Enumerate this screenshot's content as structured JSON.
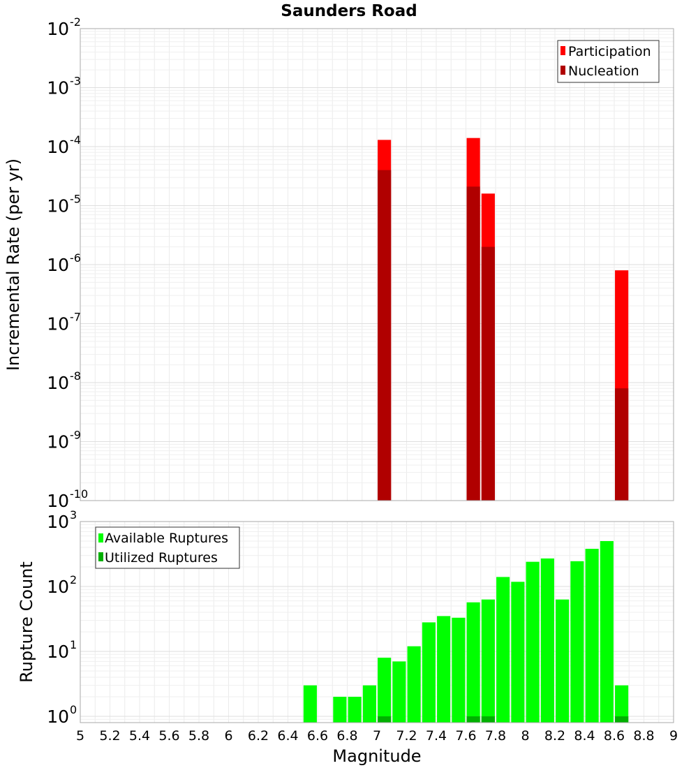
{
  "chart_data": [
    {
      "type": "bar",
      "title": "Saunders Road",
      "xlabel": "",
      "ylabel": "Incremental Rate (per yr)",
      "yscale": "log",
      "xlim": [
        5,
        9
      ],
      "ylim": [
        1e-10,
        0.01
      ],
      "ytick_exponents": [
        -10,
        -9,
        -8,
        -7,
        -6,
        -5,
        -4,
        -3,
        -2
      ],
      "bar_width": 0.09,
      "legend": {
        "position": "top-right",
        "entries": [
          "Participation",
          "Nucleation"
        ]
      },
      "series": [
        {
          "name": "Participation",
          "color": "#ff0000",
          "x": [
            7.05,
            7.65,
            7.75,
            8.65
          ],
          "values": [
            0.00013,
            0.00014,
            1.6e-05,
            8e-07
          ]
        },
        {
          "name": "Nucleation",
          "color": "#b00000",
          "x": [
            7.05,
            7.65,
            7.75,
            8.65
          ],
          "values": [
            4e-05,
            2.1e-05,
            2e-06,
            8e-09
          ]
        }
      ],
      "grid": true
    },
    {
      "type": "bar",
      "title": "",
      "xlabel": "Magnitude",
      "ylabel": "Rupture Count",
      "yscale": "log",
      "xlim": [
        5,
        9
      ],
      "ylim": [
        0.8,
        1000
      ],
      "ytick_exponents": [
        0,
        1,
        2,
        3
      ],
      "xticks": [
        "5",
        "5.2",
        "5.4",
        "5.6",
        "5.8",
        "6",
        "6.2",
        "6.4",
        "6.6",
        "6.8",
        "7",
        "7.2",
        "7.4",
        "7.6",
        "7.8",
        "8",
        "8.2",
        "8.4",
        "8.6",
        "8.8",
        "9"
      ],
      "bar_width": 0.09,
      "legend": {
        "position": "top-left",
        "entries": [
          "Available Ruptures",
          "Utilized Ruptures"
        ]
      },
      "series": [
        {
          "name": "Available Ruptures",
          "color": "#00ff00",
          "x": [
            6.55,
            6.75,
            6.85,
            6.95,
            7.05,
            7.15,
            7.25,
            7.35,
            7.45,
            7.55,
            7.65,
            7.75,
            7.85,
            7.95,
            8.05,
            8.15,
            8.25,
            8.35,
            8.45,
            8.55,
            8.65
          ],
          "values": [
            3,
            2,
            2,
            3,
            8,
            7,
            12,
            28,
            35,
            33,
            57,
            63,
            140,
            118,
            240,
            270,
            63,
            245,
            380,
            500,
            3
          ]
        },
        {
          "name": "Utilized Ruptures",
          "color": "#00b000",
          "x": [
            7.05,
            7.65,
            7.75,
            8.65
          ],
          "values": [
            1,
            1,
            1,
            1
          ]
        }
      ],
      "grid": true
    }
  ]
}
